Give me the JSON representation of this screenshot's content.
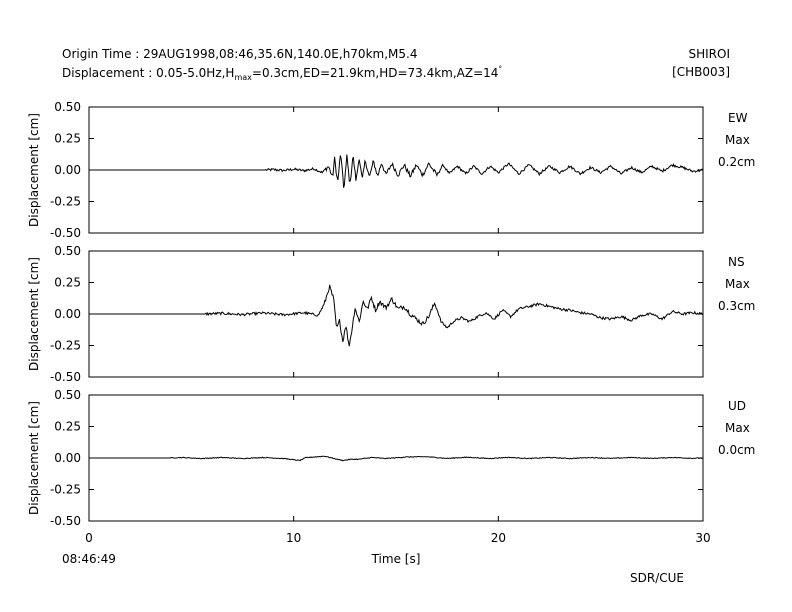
{
  "header": {
    "origin_line": "Origin Time : 29AUG1998,08:46,35.6N,140.0E,h70km,M5.4",
    "disp_prefix": "Displacement : 0.05-5.0Hz,H",
    "disp_sub": "max",
    "disp_suffix": "=0.3cm,ED=21.9km,HD=73.4km,AZ=14",
    "disp_degree": "°",
    "station": "SHIROI",
    "station_code": "[CHB003]"
  },
  "footer": {
    "start_time": "08:46:49",
    "credit": "SDR/CUE"
  },
  "chart_data": [
    {
      "type": "line",
      "component": "EW",
      "max_label": "Max",
      "max_value": "0.2cm",
      "ylabel": "Displacement [cm]",
      "xlabel": "",
      "ylim": [
        -0.5,
        0.5
      ],
      "yticks": [
        "0.50",
        "0.25",
        "0.00",
        "-0.25",
        "-0.50"
      ],
      "quiet_until": 8.6,
      "points": [
        [
          0,
          0
        ],
        [
          8.6,
          0
        ],
        [
          9,
          0.003
        ],
        [
          9.5,
          -0.004
        ],
        [
          10,
          0.006
        ],
        [
          10.5,
          -0.005
        ],
        [
          11,
          0.01
        ],
        [
          11.4,
          -0.02
        ],
        [
          11.7,
          0.03
        ],
        [
          11.9,
          -0.06
        ],
        [
          12.0,
          0.09
        ],
        [
          12.15,
          -0.1
        ],
        [
          12.3,
          0.14
        ],
        [
          12.45,
          -0.16
        ],
        [
          12.6,
          0.11
        ],
        [
          12.75,
          -0.12
        ],
        [
          12.9,
          0.12
        ],
        [
          13.05,
          -0.09
        ],
        [
          13.2,
          0.1
        ],
        [
          13.35,
          -0.08
        ],
        [
          13.5,
          0.08
        ],
        [
          13.7,
          -0.06
        ],
        [
          13.9,
          0.07
        ],
        [
          14.1,
          -0.05
        ],
        [
          14.3,
          0.06
        ],
        [
          14.5,
          -0.04
        ],
        [
          14.8,
          0.05
        ],
        [
          15.1,
          -0.04
        ],
        [
          15.4,
          0.04
        ],
        [
          15.7,
          -0.05
        ],
        [
          16.0,
          0.04
        ],
        [
          16.3,
          -0.04
        ],
        [
          16.6,
          0.05
        ],
        [
          17.0,
          -0.04
        ],
        [
          17.3,
          0.04
        ],
        [
          17.6,
          -0.03
        ],
        [
          18.0,
          0.03
        ],
        [
          18.4,
          -0.03
        ],
        [
          18.8,
          0.03
        ],
        [
          19.2,
          -0.03
        ],
        [
          19.6,
          0.03
        ],
        [
          20.0,
          -0.02
        ],
        [
          20.5,
          0.05
        ],
        [
          21.0,
          -0.03
        ],
        [
          21.5,
          0.04
        ],
        [
          22.0,
          -0.03
        ],
        [
          22.5,
          0.03
        ],
        [
          23.0,
          -0.02
        ],
        [
          23.5,
          0.03
        ],
        [
          24.0,
          -0.03
        ],
        [
          24.5,
          0.02
        ],
        [
          25.0,
          -0.02
        ],
        [
          25.5,
          0.03
        ],
        [
          26.0,
          -0.03
        ],
        [
          26.5,
          0.02
        ],
        [
          27.0,
          -0.02
        ],
        [
          27.5,
          0.03
        ],
        [
          28.0,
          -0.01
        ],
        [
          28.5,
          0.04
        ],
        [
          29.0,
          0.02
        ],
        [
          29.5,
          -0.01
        ],
        [
          30,
          0.0
        ]
      ]
    },
    {
      "type": "line",
      "component": "NS",
      "max_label": "Max",
      "max_value": "0.3cm",
      "ylabel": "Displacement [cm]",
      "xlabel": "",
      "ylim": [
        -0.5,
        0.5
      ],
      "yticks": [
        "0.50",
        "0.25",
        "0.00",
        "-0.25",
        "-0.50"
      ],
      "quiet_until": 5.7,
      "points": [
        [
          0,
          0
        ],
        [
          5.7,
          0
        ],
        [
          6.5,
          0.005
        ],
        [
          7.5,
          -0.005
        ],
        [
          8.5,
          0.008
        ],
        [
          9.5,
          -0.006
        ],
        [
          10.5,
          0.01
        ],
        [
          11.2,
          -0.01
        ],
        [
          11.5,
          0.08
        ],
        [
          11.75,
          0.22
        ],
        [
          11.95,
          0.12
        ],
        [
          12.1,
          -0.12
        ],
        [
          12.25,
          -0.05
        ],
        [
          12.4,
          -0.22
        ],
        [
          12.55,
          -0.08
        ],
        [
          12.7,
          -0.26
        ],
        [
          12.85,
          -0.12
        ],
        [
          13.0,
          0.05
        ],
        [
          13.2,
          -0.06
        ],
        [
          13.4,
          0.1
        ],
        [
          13.6,
          0.04
        ],
        [
          13.8,
          0.13
        ],
        [
          14.0,
          0.03
        ],
        [
          14.2,
          0.1
        ],
        [
          14.5,
          0.05
        ],
        [
          14.8,
          0.12
        ],
        [
          15.1,
          0.04
        ],
        [
          15.4,
          0.06
        ],
        [
          15.7,
          0.0
        ],
        [
          16.0,
          -0.04
        ],
        [
          16.3,
          -0.08
        ],
        [
          16.6,
          -0.02
        ],
        [
          16.9,
          0.09
        ],
        [
          17.2,
          -0.06
        ],
        [
          17.5,
          -0.11
        ],
        [
          17.8,
          -0.06
        ],
        [
          18.2,
          -0.03
        ],
        [
          18.6,
          -0.06
        ],
        [
          19.0,
          -0.02
        ],
        [
          19.4,
          0.01
        ],
        [
          19.8,
          -0.04
        ],
        [
          20.2,
          0.03
        ],
        [
          20.6,
          -0.02
        ],
        [
          21.0,
          0.04
        ],
        [
          21.5,
          0.06
        ],
        [
          22.0,
          0.08
        ],
        [
          22.5,
          0.06
        ],
        [
          23.0,
          0.04
        ],
        [
          23.5,
          0.03
        ],
        [
          24.0,
          0.01
        ],
        [
          24.5,
          0.0
        ],
        [
          25.0,
          -0.03
        ],
        [
          25.5,
          -0.04
        ],
        [
          26.0,
          -0.02
        ],
        [
          26.5,
          -0.05
        ],
        [
          27.0,
          -0.01
        ],
        [
          27.5,
          0.0
        ],
        [
          28.0,
          -0.04
        ],
        [
          28.5,
          0.02
        ],
        [
          29.0,
          0.0
        ],
        [
          29.5,
          0.01
        ],
        [
          30,
          0.0
        ]
      ]
    },
    {
      "type": "line",
      "component": "UD",
      "max_label": "Max",
      "max_value": "0.0cm",
      "ylabel": "Displacement [cm]",
      "xlabel": "Time [s]",
      "ylim": [
        -0.5,
        0.5
      ],
      "yticks": [
        "0.50",
        "0.25",
        "0.00",
        "-0.25",
        "-0.50"
      ],
      "xticks": [
        "0",
        "10",
        "20",
        "30"
      ],
      "xlim": [
        0,
        30
      ],
      "quiet_until": 3.9,
      "points": [
        [
          0,
          0
        ],
        [
          3.9,
          0
        ],
        [
          4.5,
          0.004
        ],
        [
          5.5,
          -0.004
        ],
        [
          6.5,
          0.004
        ],
        [
          7.5,
          -0.004
        ],
        [
          8.5,
          0.004
        ],
        [
          9.5,
          -0.004
        ],
        [
          10.3,
          -0.02
        ],
        [
          10.6,
          0.003
        ],
        [
          11.0,
          0.008
        ],
        [
          11.5,
          0.015
        ],
        [
          12.0,
          -0.005
        ],
        [
          12.4,
          -0.02
        ],
        [
          12.8,
          -0.01
        ],
        [
          13.2,
          -0.01
        ],
        [
          13.8,
          0.004
        ],
        [
          14.5,
          -0.004
        ],
        [
          15.5,
          0.008
        ],
        [
          16.5,
          0.01
        ],
        [
          17.5,
          -0.003
        ],
        [
          18.5,
          0.006
        ],
        [
          19.5,
          -0.004
        ],
        [
          20.5,
          0.005
        ],
        [
          21.5,
          -0.004
        ],
        [
          22.5,
          0.004
        ],
        [
          23.5,
          -0.004
        ],
        [
          24.5,
          0.004
        ],
        [
          25.5,
          -0.003
        ],
        [
          26.5,
          0.004
        ],
        [
          27.5,
          -0.003
        ],
        [
          28.5,
          0.004
        ],
        [
          29.5,
          -0.002
        ],
        [
          30,
          0.0
        ]
      ]
    }
  ]
}
